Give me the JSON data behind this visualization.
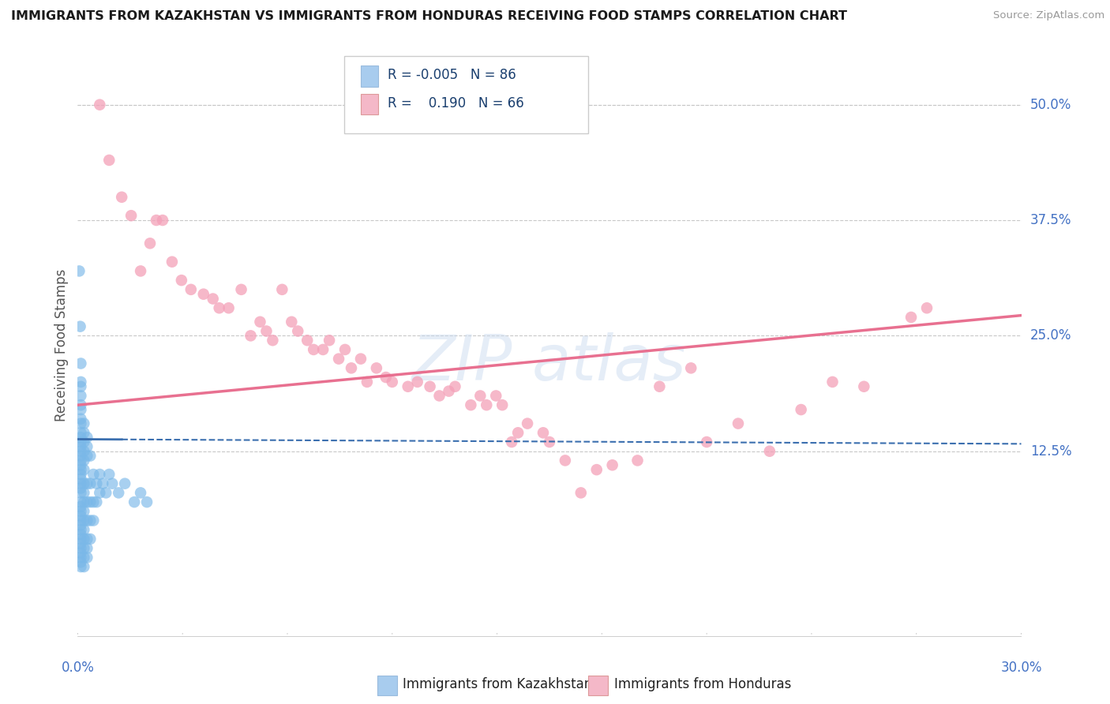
{
  "title": "IMMIGRANTS FROM KAZAKHSTAN VS IMMIGRANTS FROM HONDURAS RECEIVING FOOD STAMPS CORRELATION CHART",
  "source_text": "Source: ZipAtlas.com",
  "ylabel": "Receiving Food Stamps",
  "ytick_labels": [
    "50.0%",
    "37.5%",
    "25.0%",
    "12.5%"
  ],
  "ytick_values": [
    0.5,
    0.375,
    0.25,
    0.125
  ],
  "xlim": [
    0.0,
    0.3
  ],
  "ylim": [
    -0.08,
    0.56
  ],
  "color_kaz": "#7ab8e8",
  "color_hon": "#f4a0b8",
  "color_kaz_line": "#3b6faf",
  "color_hon_line": "#e87090",
  "background_color": "#ffffff",
  "grid_color": "#c8c8c8",
  "title_color": "#1a1a1a",
  "axis_label_color": "#4472c4",
  "legend_kaz_color": "#a8ccee",
  "legend_hon_color": "#f4b8c8",
  "kaz_line_start_y": 0.138,
  "kaz_line_end_y": 0.133,
  "hon_line_start_y": 0.175,
  "hon_line_end_y": 0.272,
  "kaz_scatter": [
    [
      0.0005,
      0.32
    ],
    [
      0.0008,
      0.26
    ],
    [
      0.001,
      0.17
    ],
    [
      0.001,
      0.2
    ],
    [
      0.001,
      0.22
    ],
    [
      0.001,
      0.195
    ],
    [
      0.001,
      0.185
    ],
    [
      0.001,
      0.175
    ],
    [
      0.001,
      0.16
    ],
    [
      0.001,
      0.155
    ],
    [
      0.001,
      0.145
    ],
    [
      0.001,
      0.14
    ],
    [
      0.001,
      0.135
    ],
    [
      0.001,
      0.13
    ],
    [
      0.001,
      0.125
    ],
    [
      0.001,
      0.12
    ],
    [
      0.001,
      0.115
    ],
    [
      0.001,
      0.11
    ],
    [
      0.001,
      0.105
    ],
    [
      0.001,
      0.1
    ],
    [
      0.001,
      0.095
    ],
    [
      0.001,
      0.09
    ],
    [
      0.001,
      0.085
    ],
    [
      0.001,
      0.08
    ],
    [
      0.001,
      0.07
    ],
    [
      0.001,
      0.065
    ],
    [
      0.001,
      0.06
    ],
    [
      0.001,
      0.055
    ],
    [
      0.001,
      0.05
    ],
    [
      0.001,
      0.045
    ],
    [
      0.001,
      0.04
    ],
    [
      0.001,
      0.035
    ],
    [
      0.001,
      0.03
    ],
    [
      0.001,
      0.025
    ],
    [
      0.001,
      0.02
    ],
    [
      0.001,
      0.015
    ],
    [
      0.001,
      0.01
    ],
    [
      0.001,
      0.005
    ],
    [
      0.001,
      0.0
    ],
    [
      0.002,
      0.155
    ],
    [
      0.002,
      0.145
    ],
    [
      0.002,
      0.135
    ],
    [
      0.002,
      0.125
    ],
    [
      0.002,
      0.115
    ],
    [
      0.002,
      0.105
    ],
    [
      0.002,
      0.09
    ],
    [
      0.002,
      0.08
    ],
    [
      0.002,
      0.07
    ],
    [
      0.002,
      0.06
    ],
    [
      0.002,
      0.05
    ],
    [
      0.002,
      0.04
    ],
    [
      0.002,
      0.03
    ],
    [
      0.002,
      0.02
    ],
    [
      0.002,
      0.01
    ],
    [
      0.002,
      0.0
    ],
    [
      0.003,
      0.14
    ],
    [
      0.003,
      0.13
    ],
    [
      0.003,
      0.12
    ],
    [
      0.003,
      0.09
    ],
    [
      0.003,
      0.07
    ],
    [
      0.003,
      0.05
    ],
    [
      0.003,
      0.03
    ],
    [
      0.003,
      0.02
    ],
    [
      0.003,
      0.01
    ],
    [
      0.004,
      0.12
    ],
    [
      0.004,
      0.09
    ],
    [
      0.004,
      0.07
    ],
    [
      0.004,
      0.05
    ],
    [
      0.004,
      0.03
    ],
    [
      0.005,
      0.1
    ],
    [
      0.005,
      0.07
    ],
    [
      0.005,
      0.05
    ],
    [
      0.006,
      0.09
    ],
    [
      0.006,
      0.07
    ],
    [
      0.007,
      0.1
    ],
    [
      0.007,
      0.08
    ],
    [
      0.008,
      0.09
    ],
    [
      0.009,
      0.08
    ],
    [
      0.01,
      0.1
    ],
    [
      0.011,
      0.09
    ],
    [
      0.013,
      0.08
    ],
    [
      0.015,
      0.09
    ],
    [
      0.018,
      0.07
    ],
    [
      0.02,
      0.08
    ],
    [
      0.022,
      0.07
    ]
  ],
  "hon_scatter": [
    [
      0.007,
      0.5
    ],
    [
      0.01,
      0.44
    ],
    [
      0.014,
      0.4
    ],
    [
      0.017,
      0.38
    ],
    [
      0.02,
      0.32
    ],
    [
      0.023,
      0.35
    ],
    [
      0.025,
      0.375
    ],
    [
      0.027,
      0.375
    ],
    [
      0.03,
      0.33
    ],
    [
      0.033,
      0.31
    ],
    [
      0.036,
      0.3
    ],
    [
      0.04,
      0.295
    ],
    [
      0.043,
      0.29
    ],
    [
      0.045,
      0.28
    ],
    [
      0.048,
      0.28
    ],
    [
      0.052,
      0.3
    ],
    [
      0.055,
      0.25
    ],
    [
      0.058,
      0.265
    ],
    [
      0.06,
      0.255
    ],
    [
      0.062,
      0.245
    ],
    [
      0.065,
      0.3
    ],
    [
      0.068,
      0.265
    ],
    [
      0.07,
      0.255
    ],
    [
      0.073,
      0.245
    ],
    [
      0.075,
      0.235
    ],
    [
      0.078,
      0.235
    ],
    [
      0.08,
      0.245
    ],
    [
      0.083,
      0.225
    ],
    [
      0.085,
      0.235
    ],
    [
      0.087,
      0.215
    ],
    [
      0.09,
      0.225
    ],
    [
      0.092,
      0.2
    ],
    [
      0.095,
      0.215
    ],
    [
      0.098,
      0.205
    ],
    [
      0.1,
      0.2
    ],
    [
      0.105,
      0.195
    ],
    [
      0.108,
      0.2
    ],
    [
      0.112,
      0.195
    ],
    [
      0.115,
      0.185
    ],
    [
      0.118,
      0.19
    ],
    [
      0.12,
      0.195
    ],
    [
      0.125,
      0.175
    ],
    [
      0.128,
      0.185
    ],
    [
      0.13,
      0.175
    ],
    [
      0.133,
      0.185
    ],
    [
      0.135,
      0.175
    ],
    [
      0.138,
      0.135
    ],
    [
      0.14,
      0.145
    ],
    [
      0.143,
      0.155
    ],
    [
      0.148,
      0.145
    ],
    [
      0.15,
      0.135
    ],
    [
      0.155,
      0.115
    ],
    [
      0.16,
      0.08
    ],
    [
      0.165,
      0.105
    ],
    [
      0.17,
      0.11
    ],
    [
      0.178,
      0.115
    ],
    [
      0.185,
      0.195
    ],
    [
      0.195,
      0.215
    ],
    [
      0.2,
      0.135
    ],
    [
      0.21,
      0.155
    ],
    [
      0.22,
      0.125
    ],
    [
      0.23,
      0.17
    ],
    [
      0.24,
      0.2
    ],
    [
      0.25,
      0.195
    ],
    [
      0.265,
      0.27
    ],
    [
      0.27,
      0.28
    ]
  ]
}
